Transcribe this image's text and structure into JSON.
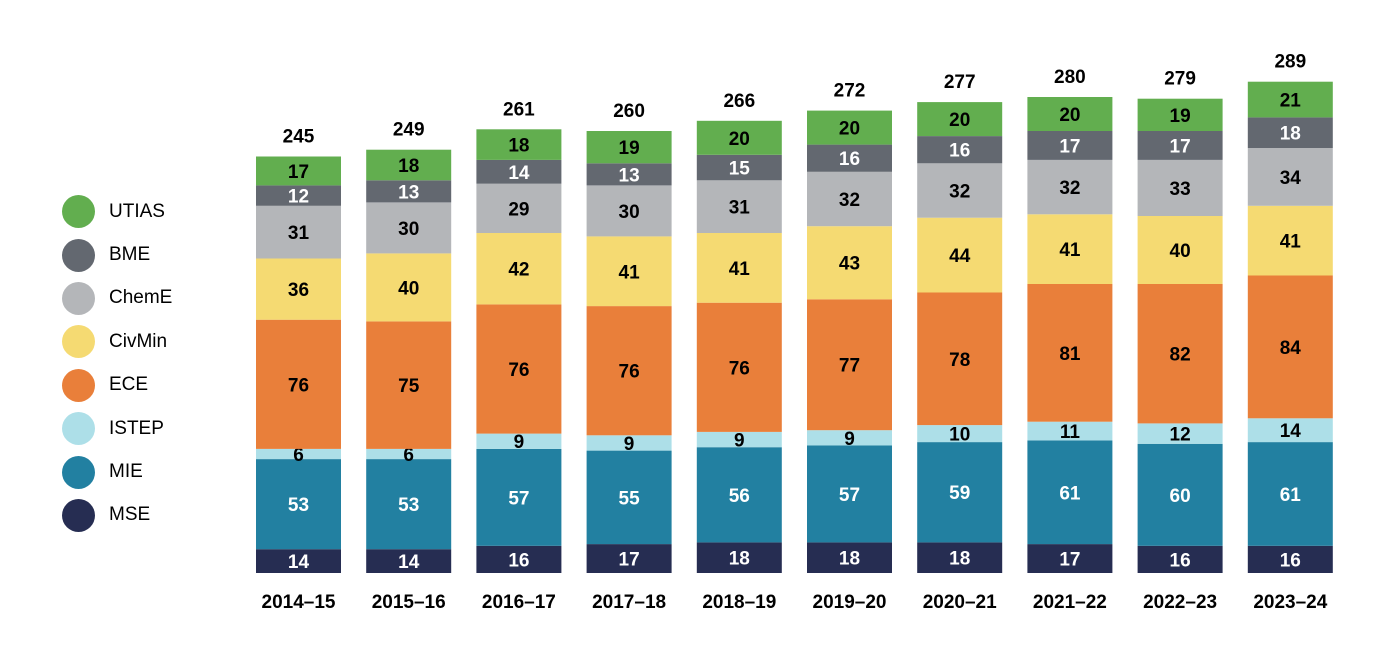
{
  "chart_data": {
    "type": "bar",
    "stacked": true,
    "categories": [
      "2014–15",
      "2015–16",
      "2016–17",
      "2017–18",
      "2018–19",
      "2019–20",
      "2020–21",
      "2021–22",
      "2022–23",
      "2023–24"
    ],
    "totals": [
      245,
      249,
      261,
      260,
      266,
      272,
      277,
      280,
      279,
      289
    ],
    "series": [
      {
        "name": "MSE",
        "color": "#262d52",
        "label_color": "#ffffff",
        "values": [
          14,
          14,
          16,
          17,
          18,
          18,
          18,
          17,
          16,
          16
        ]
      },
      {
        "name": "MIE",
        "color": "#2280a1",
        "label_color": "#ffffff",
        "values": [
          53,
          53,
          57,
          55,
          56,
          57,
          59,
          61,
          60,
          61
        ]
      },
      {
        "name": "ISTEP",
        "color": "#addfe8",
        "label_color": "#000000",
        "values": [
          6,
          6,
          9,
          9,
          9,
          9,
          10,
          11,
          12,
          14
        ]
      },
      {
        "name": "ECE",
        "color": "#e97f3a",
        "label_color": "#000000",
        "values": [
          76,
          75,
          76,
          76,
          76,
          77,
          78,
          81,
          82,
          84
        ]
      },
      {
        "name": "CivMin",
        "color": "#f5da72",
        "label_color": "#000000",
        "values": [
          36,
          40,
          42,
          41,
          41,
          43,
          44,
          41,
          40,
          41
        ]
      },
      {
        "name": "ChemE",
        "color": "#b4b6b9",
        "label_color": "#000000",
        "values": [
          31,
          30,
          29,
          30,
          31,
          32,
          32,
          32,
          33,
          34
        ]
      },
      {
        "name": "BME",
        "color": "#636870",
        "label_color": "#ffffff",
        "values": [
          12,
          13,
          14,
          13,
          15,
          16,
          16,
          17,
          17,
          18
        ]
      },
      {
        "name": "UTIAS",
        "color": "#62ae4f",
        "label_color": "#000000",
        "values": [
          17,
          18,
          18,
          19,
          20,
          20,
          20,
          20,
          19,
          21
        ]
      }
    ],
    "legend": [
      "UTIAS",
      "BME",
      "ChemE",
      "CivMin",
      "ECE",
      "ISTEP",
      "MIE",
      "MSE"
    ],
    "legend_position": "left",
    "ylim": [
      0,
      289
    ],
    "grid": false
  }
}
